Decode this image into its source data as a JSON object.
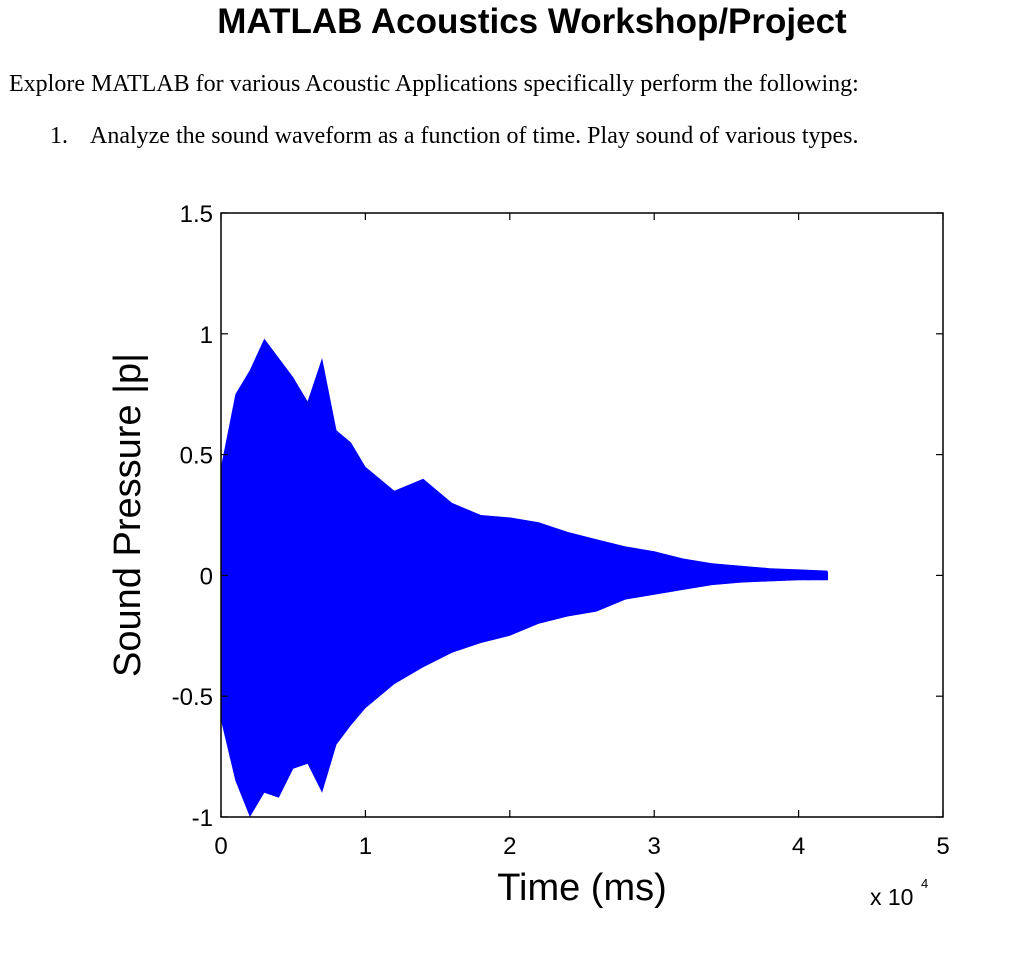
{
  "document": {
    "title": "MATLAB Acoustics Workshop/Project",
    "intro": "Explore MATLAB for various Acoustic Applications specifically perform the following:",
    "steps": [
      {
        "number": "1.",
        "text": "Analyze the sound waveform as a function of time. Play sound of various types."
      }
    ]
  },
  "chart_data": {
    "type": "line",
    "title": "",
    "xlabel": "Time (ms)",
    "ylabel": "Sound Pressure |p|",
    "xlim": [
      0,
      50000
    ],
    "ylim": [
      -1,
      1.5
    ],
    "x_ticks": [
      0,
      10000,
      20000,
      30000,
      40000,
      50000
    ],
    "x_tick_labels": [
      "0",
      "1",
      "2",
      "3",
      "4",
      "5"
    ],
    "x_scale_label": "x 10",
    "x_scale_exponent": "4",
    "y_ticks": [
      -1,
      -0.5,
      0,
      0.5,
      1,
      1.5
    ],
    "y_tick_labels": [
      "-1",
      "-0.5",
      "0",
      "0.5",
      "1",
      "1.5"
    ],
    "grid": false,
    "legend": "none",
    "series_color": "#0000ff",
    "series": [
      {
        "x": [
          0,
          1000,
          2000,
          3000,
          4000,
          5000,
          6000,
          7000,
          8000,
          9000,
          10000,
          12000,
          14000,
          16000,
          18000,
          20000,
          22000,
          24000,
          26000,
          28000,
          30000,
          32000,
          34000,
          36000,
          38000,
          40000,
          42000
        ],
        "upper": [
          0.45,
          0.75,
          0.85,
          0.98,
          0.9,
          0.82,
          0.72,
          0.9,
          0.6,
          0.55,
          0.45,
          0.35,
          0.4,
          0.3,
          0.25,
          0.24,
          0.22,
          0.18,
          0.15,
          0.12,
          0.1,
          0.07,
          0.05,
          0.04,
          0.03,
          0.025,
          0.02
        ],
        "lower": [
          -0.6,
          -0.85,
          -1.0,
          -0.9,
          -0.92,
          -0.8,
          -0.78,
          -0.9,
          -0.7,
          -0.62,
          -0.55,
          -0.45,
          -0.38,
          -0.32,
          -0.28,
          -0.25,
          -0.2,
          -0.17,
          -0.15,
          -0.1,
          -0.08,
          -0.06,
          -0.04,
          -0.03,
          -0.025,
          -0.02,
          -0.02
        ]
      }
    ]
  }
}
